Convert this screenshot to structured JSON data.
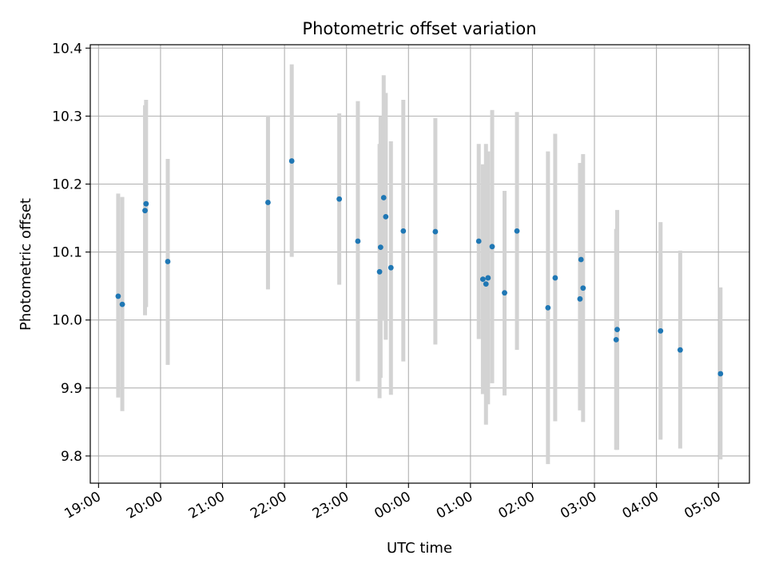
{
  "chart_data": {
    "type": "scatter",
    "title": "Photometric offset variation",
    "xlabel": "UTC time",
    "ylabel": "Photometric offset",
    "xlim": [
      "18:52",
      "05:30"
    ],
    "x_day_rollover": "00:00",
    "ylim": [
      9.76,
      10.405
    ],
    "grid": true,
    "legend": "none",
    "x_ticks": [
      "19:00",
      "20:00",
      "21:00",
      "22:00",
      "23:00",
      "00:00",
      "01:00",
      "02:00",
      "03:00",
      "04:00",
      "05:00"
    ],
    "y_ticks": [
      "9.8",
      "9.9",
      "10.0",
      "10.1",
      "10.2",
      "10.3",
      "10.4"
    ],
    "y_tick_values": [
      9.8,
      9.9,
      10.0,
      10.1,
      10.2,
      10.3,
      10.4
    ],
    "colors": {
      "point": "#1f77b4",
      "error_bar": "#d3d3d3",
      "grid": "#b0b0b0",
      "axes": "#000000"
    },
    "points": [
      {
        "x": "19:19",
        "y": 10.035,
        "ylow": 9.886,
        "yhigh": 10.186
      },
      {
        "x": "19:23",
        "y": 10.023,
        "ylow": 9.866,
        "yhigh": 10.181
      },
      {
        "x": "19:45",
        "y": 10.161,
        "ylow": 10.007,
        "yhigh": 10.316
      },
      {
        "x": "19:46",
        "y": 10.171,
        "ylow": 10.019,
        "yhigh": 10.324
      },
      {
        "x": "20:07",
        "y": 10.086,
        "ylow": 9.934,
        "yhigh": 10.237
      },
      {
        "x": "21:44",
        "y": 10.173,
        "ylow": 10.045,
        "yhigh": 10.301
      },
      {
        "x": "22:07",
        "y": 10.234,
        "ylow": 10.093,
        "yhigh": 10.376
      },
      {
        "x": "22:53",
        "y": 10.178,
        "ylow": 10.052,
        "yhigh": 10.304
      },
      {
        "x": "23:11",
        "y": 10.116,
        "ylow": 9.91,
        "yhigh": 10.322
      },
      {
        "x": "23:32",
        "y": 10.071,
        "ylow": 9.885,
        "yhigh": 10.259
      },
      {
        "x": "23:33",
        "y": 10.107,
        "ylow": 9.915,
        "yhigh": 10.3
      },
      {
        "x": "23:36",
        "y": 10.18,
        "ylow": 9.999,
        "yhigh": 10.36
      },
      {
        "x": "23:38",
        "y": 10.152,
        "ylow": 9.971,
        "yhigh": 10.334
      },
      {
        "x": "23:43",
        "y": 10.077,
        "ylow": 9.89,
        "yhigh": 10.263
      },
      {
        "x": "23:55",
        "y": 10.131,
        "ylow": 9.939,
        "yhigh": 10.324
      },
      {
        "x": "00:26",
        "y": 10.13,
        "ylow": 9.964,
        "yhigh": 10.297
      },
      {
        "x": "01:08",
        "y": 10.116,
        "ylow": 9.972,
        "yhigh": 10.259
      },
      {
        "x": "01:12",
        "y": 10.06,
        "ylow": 9.891,
        "yhigh": 10.229
      },
      {
        "x": "01:15",
        "y": 10.053,
        "ylow": 9.846,
        "yhigh": 10.259
      },
      {
        "x": "01:17",
        "y": 10.062,
        "ylow": 9.876,
        "yhigh": 10.248
      },
      {
        "x": "01:21",
        "y": 10.108,
        "ylow": 9.907,
        "yhigh": 10.309
      },
      {
        "x": "01:33",
        "y": 10.04,
        "ylow": 9.889,
        "yhigh": 10.19
      },
      {
        "x": "01:45",
        "y": 10.131,
        "ylow": 9.956,
        "yhigh": 10.306
      },
      {
        "x": "02:15",
        "y": 10.018,
        "ylow": 9.788,
        "yhigh": 10.248
      },
      {
        "x": "02:22",
        "y": 10.062,
        "ylow": 9.851,
        "yhigh": 10.274
      },
      {
        "x": "02:46",
        "y": 10.031,
        "ylow": 9.867,
        "yhigh": 10.231
      },
      {
        "x": "02:47",
        "y": 10.089,
        "ylow": 9.933,
        "yhigh": 10.231
      },
      {
        "x": "02:49",
        "y": 10.047,
        "ylow": 9.85,
        "yhigh": 10.244
      },
      {
        "x": "03:21",
        "y": 9.971,
        "ylow": 9.809,
        "yhigh": 10.134
      },
      {
        "x": "03:22",
        "y": 9.986,
        "ylow": 9.809,
        "yhigh": 10.162
      },
      {
        "x": "04:04",
        "y": 9.984,
        "ylow": 9.824,
        "yhigh": 10.144
      },
      {
        "x": "04:23",
        "y": 9.956,
        "ylow": 9.811,
        "yhigh": 10.102
      },
      {
        "x": "05:02",
        "y": 9.921,
        "ylow": 9.795,
        "yhigh": 10.048
      }
    ]
  }
}
